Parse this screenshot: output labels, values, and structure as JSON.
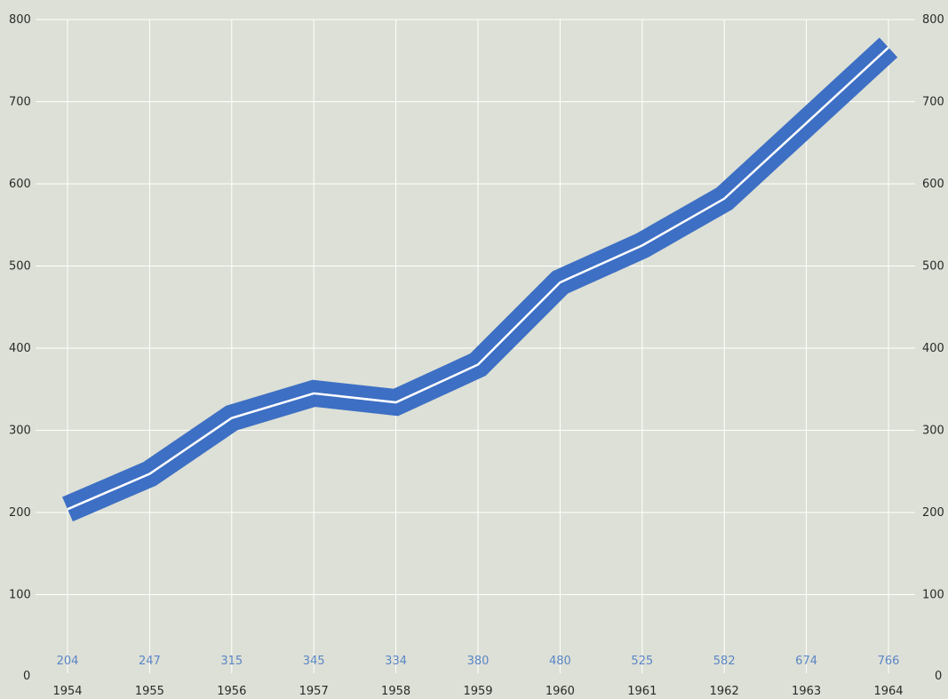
{
  "colors": {
    "background": "#dde0d6",
    "grid": "#ffffff",
    "band": "#3d6fc4",
    "center_line": "#ffffff",
    "data_label": "#5b86c6",
    "tick_text": "#2a2a2a"
  },
  "chart_data": {
    "type": "line",
    "title": "",
    "xlabel": "",
    "ylabel": "",
    "categories": [
      "1954",
      "1955",
      "1956",
      "1957",
      "1958",
      "1959",
      "1960",
      "1961",
      "1962",
      "1963",
      "1964"
    ],
    "series": [
      {
        "values": [
          204,
          247,
          315,
          345,
          334,
          380,
          480,
          525,
          582,
          674,
          766
        ]
      }
    ],
    "data_labels": [
      "204",
      "247",
      "315",
      "345",
      "334",
      "380",
      "480",
      "525",
      "582",
      "674",
      "766"
    ],
    "ylim": [
      0,
      800
    ],
    "y_ticks": [
      0,
      100,
      200,
      300,
      400,
      500,
      600,
      700,
      800
    ],
    "y_tick_labels": [
      "0",
      "100",
      "200",
      "300",
      "400",
      "500",
      "600",
      "700",
      "800"
    ],
    "y_axis_sides": "left and right",
    "grid": true,
    "legend": "none"
  }
}
